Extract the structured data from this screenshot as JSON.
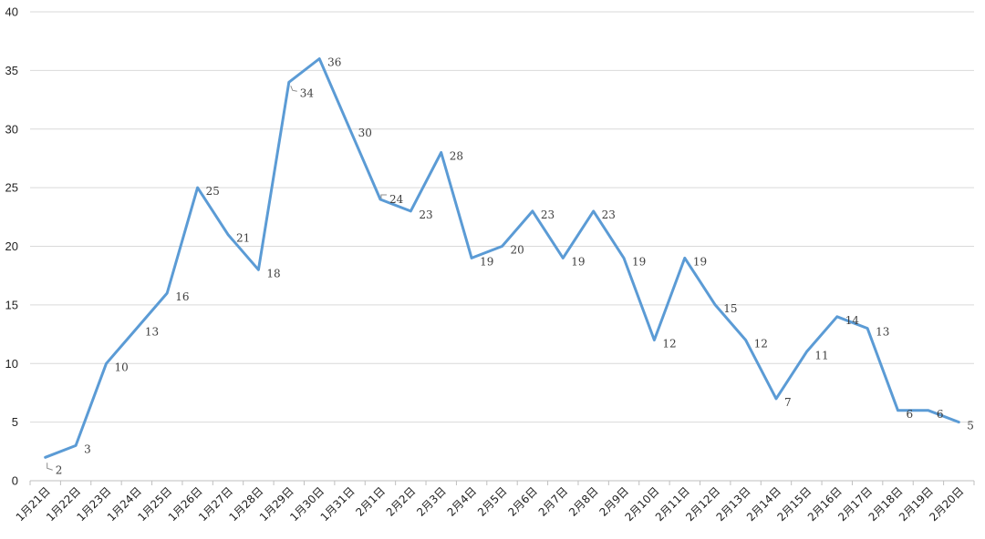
{
  "chart_data": {
    "type": "line",
    "title": "",
    "xlabel": "",
    "ylabel": "",
    "categories": [
      "1月21日",
      "1月22日",
      "1月23日",
      "1月24日",
      "1月25日",
      "1月26日",
      "1月27日",
      "1月28日",
      "1月29日",
      "1月30日",
      "1月31日",
      "2月1日",
      "2月2日",
      "2月3日",
      "2月4日",
      "2月5日",
      "2月6日",
      "2月7日",
      "2月8日",
      "2月9日",
      "2月10日",
      "2月11日",
      "2月12日",
      "2月13日",
      "2月14日",
      "2月15日",
      "2月16日",
      "2月17日",
      "2月18日",
      "2月19日",
      "2月20日"
    ],
    "series": [
      {
        "values": [
          2,
          3,
          10,
          13,
          16,
          25,
          21,
          18,
          34,
          36,
          30,
          24,
          23,
          28,
          19,
          20,
          23,
          19,
          23,
          19,
          12,
          19,
          15,
          12,
          7,
          11,
          14,
          13,
          6,
          6,
          5
        ],
        "color": "#5b9bd5"
      }
    ],
    "ylim": [
      0,
      40
    ],
    "yticks": [
      0,
      5,
      10,
      15,
      20,
      25,
      30,
      35,
      40
    ],
    "grid": true,
    "legend": "none",
    "data_labels": true
  }
}
